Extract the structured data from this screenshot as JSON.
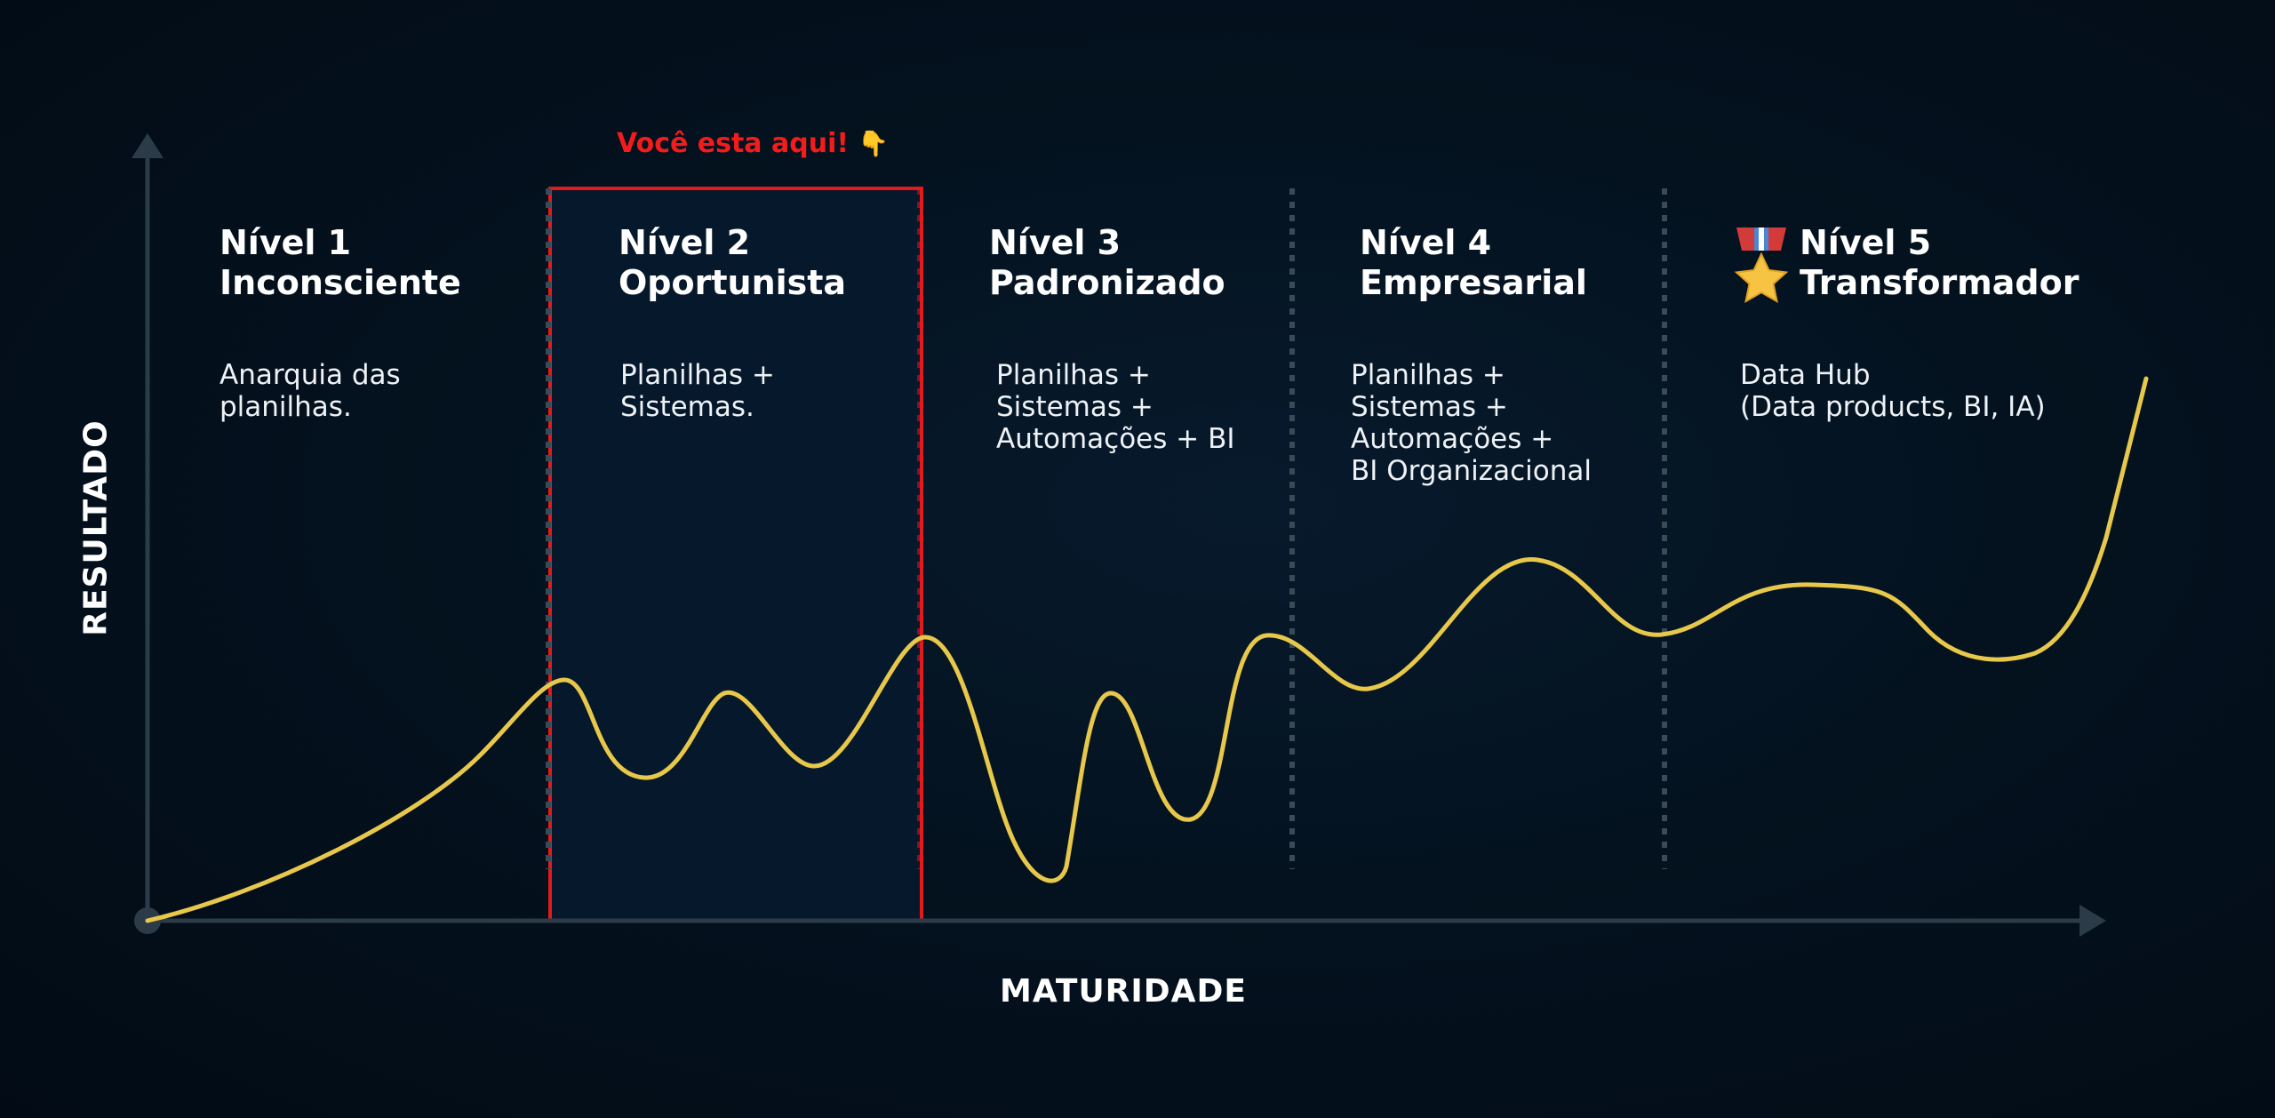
{
  "axes": {
    "x_label": "MATURIDADE",
    "y_label": "RESULTADO",
    "color": "#2b3b47"
  },
  "marker": {
    "label": "Você esta aqui!",
    "icon": "pointing-down-icon",
    "icon_glyph": "👇",
    "color": "#f21c1c",
    "level_index": 1
  },
  "levels": [
    {
      "title_line1": "Nível 1",
      "title_line2": "Inconsciente",
      "desc": [
        "Anarquia das",
        "planilhas."
      ]
    },
    {
      "title_line1": "Nível 2",
      "title_line2": "Oportunista",
      "desc": [
        "Planilhas +",
        "Sistemas."
      ]
    },
    {
      "title_line1": "Nível 3",
      "title_line2": "Padronizado",
      "desc": [
        "Planilhas +",
        "Sistemas +",
        "Automações + BI"
      ]
    },
    {
      "title_line1": "Nível 4",
      "title_line2": "Empresarial",
      "desc": [
        "Planilhas +",
        "Sistemas +",
        "Automações +",
        "BI Organizacional"
      ]
    },
    {
      "title_line1": "Nível 5",
      "title_line2": "Transformador",
      "desc": [
        "Data Hub",
        "(Data products, BI, IA)"
      ],
      "icon": "medal-icon"
    }
  ],
  "colors": {
    "background": "#020b15",
    "curve": "#e8c84a",
    "divider": "#3a4a56",
    "highlight_fill": "#06182b"
  }
}
